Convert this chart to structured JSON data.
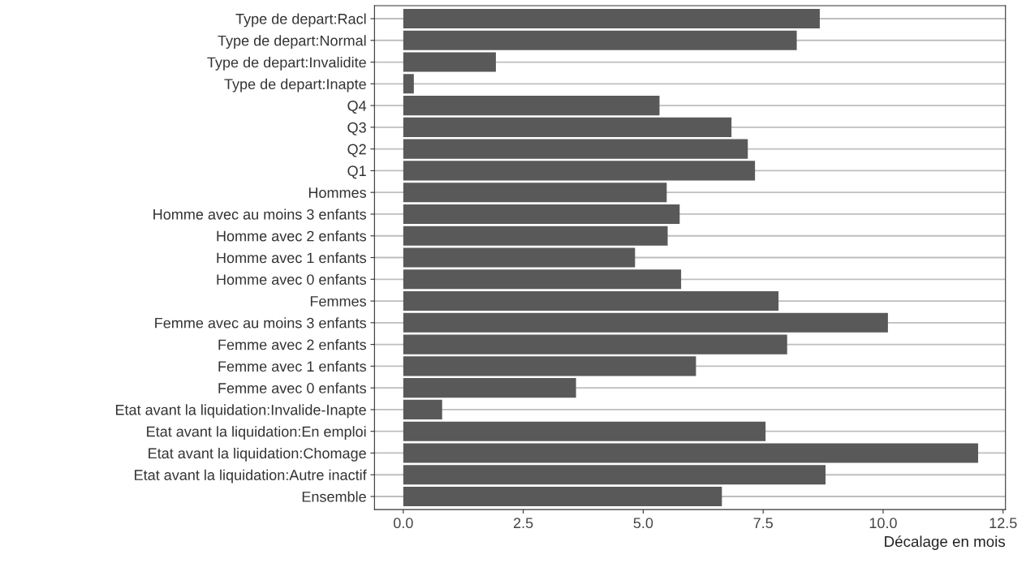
{
  "chart_data": {
    "type": "bar",
    "orientation": "horizontal",
    "xlabel": "Décalage en mois",
    "categories": [
      "Type de depart:Racl",
      "Type de depart:Normal",
      "Type de depart:Invalidite",
      "Type de depart:Inapte",
      "Q4",
      "Q3",
      "Q2",
      "Q1",
      "Hommes",
      "Homme avec au moins 3 enfants",
      "Homme avec 2 enfants",
      "Homme avec 1 enfants",
      "Homme avec 0 enfants",
      "Femmes",
      "Femme avec au moins 3 enfants",
      "Femme avec 2 enfants",
      "Femme avec 1 enfants",
      "Femme avec 0 enfants",
      "Etat avant la liquidation:Invalide-Inapte",
      "Etat avant la liquidation:En emploi",
      "Etat avant la liquidation:Chomage",
      "Etat avant la liquidation:Autre inactif",
      "Ensemble"
    ],
    "values": [
      8.68,
      8.2,
      1.93,
      0.22,
      5.34,
      6.84,
      7.18,
      7.33,
      5.49,
      5.76,
      5.51,
      4.83,
      5.79,
      7.82,
      10.1,
      8.0,
      6.1,
      3.6,
      0.81,
      7.55,
      11.98,
      8.8,
      6.64
    ],
    "color": "#595959",
    "xlim": [
      -0.6,
      12.55
    ],
    "xticks": [
      {
        "value": 0,
        "label": "0.0"
      },
      {
        "value": 2.5,
        "label": "2.5"
      },
      {
        "value": 5,
        "label": "5.0"
      },
      {
        "value": 7.5,
        "label": "7.5"
      },
      {
        "value": 10,
        "label": "10.0"
      },
      {
        "value": 12.5,
        "label": "12.5"
      }
    ],
    "grid": "y"
  }
}
